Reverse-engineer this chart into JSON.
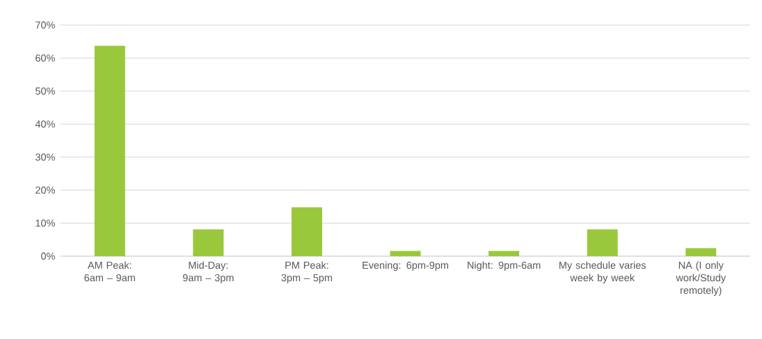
{
  "chart_data": {
    "type": "bar",
    "categories": [
      "AM Peak: 6am – 9am",
      "Mid-Day: 9am – 3pm",
      "PM Peak: 3pm – 5pm",
      "Evening: 6pm-9pm",
      "Night: 9pm-6am",
      "My schedule varies week by week",
      "NA (I only work/Study remotely)"
    ],
    "values": [
      63.7,
      8.1,
      14.8,
      1.6,
      1.6,
      8.1,
      2.4
    ],
    "color": "#9ac83c",
    "ylim": [
      0,
      70
    ],
    "yticks": [
      {
        "value": 0,
        "label": "0%"
      },
      {
        "value": 10,
        "label": "10%"
      },
      {
        "value": 20,
        "label": "20%"
      },
      {
        "value": 30,
        "label": "30%"
      },
      {
        "value": 40,
        "label": "40%"
      },
      {
        "value": 50,
        "label": "50%"
      },
      {
        "value": 60,
        "label": "60%"
      },
      {
        "value": 70,
        "label": "70%"
      }
    ],
    "grid": "y"
  }
}
